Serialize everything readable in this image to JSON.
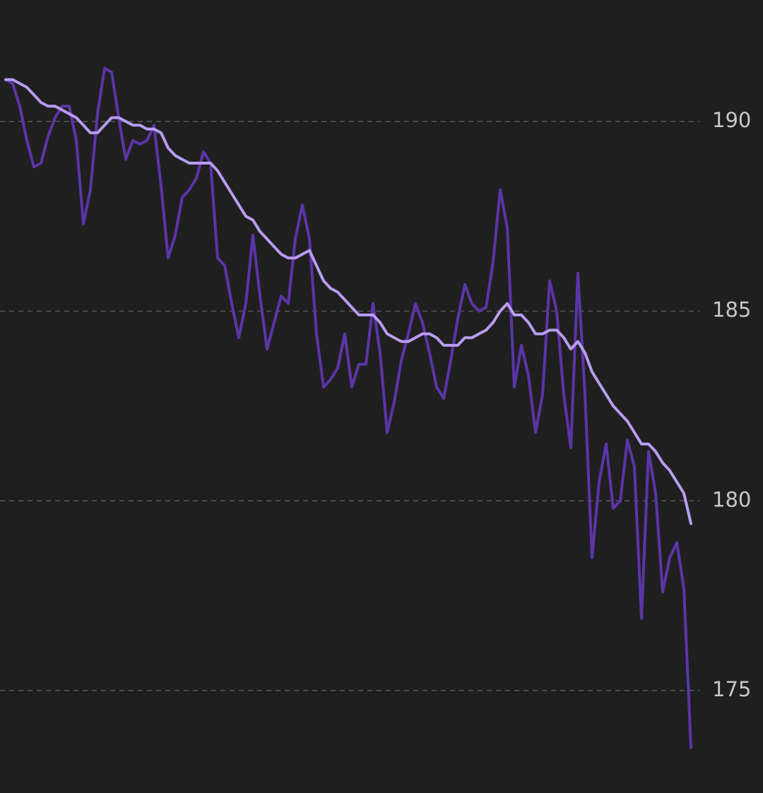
{
  "chart_data": {
    "type": "line",
    "ylim": [
      172.3,
      193.2
    ],
    "yticks": [
      175,
      180,
      185,
      190
    ],
    "grid": true,
    "y_axis_side": "right",
    "series": [
      {
        "color": "#5b35a8",
        "values": [
          191.1,
          191.0,
          190.4,
          189.5,
          188.8,
          188.9,
          189.6,
          190.1,
          190.4,
          190.4,
          189.5,
          187.3,
          188.2,
          190.2,
          191.4,
          191.3,
          190.1,
          189.0,
          189.5,
          189.4,
          189.5,
          189.9,
          188.3,
          186.4,
          187.0,
          188.0,
          188.2,
          188.5,
          189.2,
          188.9,
          186.4,
          186.2,
          185.2,
          184.3,
          185.2,
          187.0,
          185.4,
          184.0,
          184.7,
          185.4,
          185.2,
          186.9,
          187.8,
          186.9,
          184.4,
          183.0,
          183.2,
          183.5,
          184.4,
          183.0,
          183.6,
          183.6,
          185.2,
          183.9,
          181.8,
          182.6,
          183.7,
          184.4,
          185.2,
          184.7,
          183.9,
          183.0,
          182.7,
          183.7,
          184.8,
          185.7,
          185.2,
          185.0,
          185.1,
          186.3,
          188.2,
          187.2,
          183.0,
          184.1,
          183.3,
          181.8,
          182.8,
          185.8,
          185.0,
          182.8,
          181.4,
          186.0,
          182.8,
          178.5,
          180.5,
          181.5,
          179.8,
          180.0,
          181.6,
          180.9,
          176.9,
          181.3,
          180.2,
          177.6,
          178.5,
          178.9,
          177.7,
          173.5
        ]
      },
      {
        "color": "#b89cf0",
        "values": [
          191.1,
          191.1,
          191.0,
          190.9,
          190.7,
          190.5,
          190.4,
          190.4,
          190.3,
          190.2,
          190.1,
          189.9,
          189.7,
          189.7,
          189.9,
          190.1,
          190.1,
          190.0,
          189.9,
          189.9,
          189.8,
          189.8,
          189.7,
          189.3,
          189.1,
          189.0,
          188.9,
          188.9,
          188.9,
          188.9,
          188.7,
          188.4,
          188.1,
          187.8,
          187.5,
          187.4,
          187.1,
          186.9,
          186.7,
          186.5,
          186.4,
          186.4,
          186.5,
          186.6,
          186.2,
          185.8,
          185.6,
          185.5,
          185.3,
          185.1,
          184.9,
          184.9,
          184.9,
          184.7,
          184.4,
          184.3,
          184.2,
          184.2,
          184.3,
          184.4,
          184.4,
          184.3,
          184.1,
          184.1,
          184.1,
          184.3,
          184.3,
          184.4,
          184.5,
          184.7,
          185.0,
          185.2,
          184.9,
          184.9,
          184.7,
          184.4,
          184.4,
          184.5,
          184.5,
          184.3,
          184.0,
          184.2,
          183.9,
          183.4,
          183.1,
          182.8,
          182.5,
          182.3,
          182.1,
          181.8,
          181.5,
          181.5,
          181.3,
          181.0,
          180.8,
          180.5,
          180.2,
          179.4
        ]
      }
    ]
  }
}
